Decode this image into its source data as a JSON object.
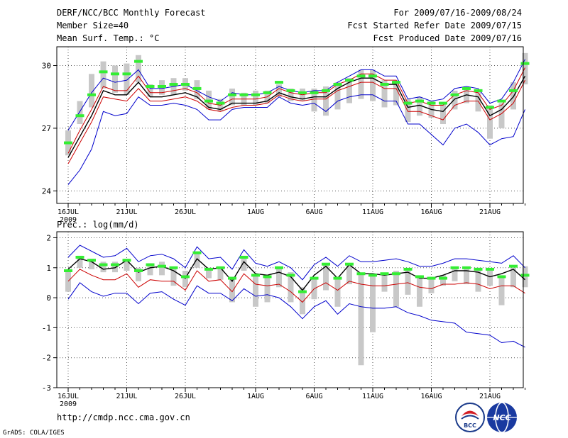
{
  "header": {
    "title": "DERF/NCC/BCC Monthly Forecast",
    "member_size": "Member Size=40",
    "variable": "Mean Surf. Temp.: °C",
    "period": "For 2009/07/16-2009/08/24",
    "started": "Fcst Started Refer Date 2009/07/15",
    "produced": "Fcst Produced Date 2009/07/16"
  },
  "footer": {
    "url": "http://cmdp.ncc.cma.gov.cn",
    "credit": "GrADS: COLA/IGES"
  },
  "logos": {
    "left": "BCC",
    "right": "NCC"
  },
  "colors": {
    "envelope": "#0000cc",
    "spread": "#cc0000",
    "mean": "#000000",
    "bar": "#c8c8c8",
    "marker": "#33ee33"
  },
  "chart_data": [
    {
      "type": "line",
      "title": "Mean Surf. Temp.: °C",
      "xlabel": "",
      "ylabel": "°C",
      "ylim": [
        23.4,
        30.9
      ],
      "yticks": [
        24,
        27,
        30
      ],
      "xticks": [
        {
          "day": 1,
          "label": "16JUL",
          "sub": "2009"
        },
        {
          "day": 6,
          "label": "21JUL"
        },
        {
          "day": 11,
          "label": "26JUL"
        },
        {
          "day": 17,
          "label": "1AUG"
        },
        {
          "day": 22,
          "label": "6AUG"
        },
        {
          "day": 27,
          "label": "11AUG"
        },
        {
          "day": 32,
          "label": "16AUG"
        },
        {
          "day": 37,
          "label": "21AUG"
        }
      ],
      "x": [
        1,
        2,
        3,
        4,
        5,
        6,
        7,
        8,
        9,
        10,
        11,
        12,
        13,
        14,
        15,
        16,
        17,
        18,
        19,
        20,
        21,
        22,
        23,
        24,
        25,
        26,
        27,
        28,
        29,
        30,
        31,
        32,
        33,
        34,
        35,
        36,
        37,
        38,
        39,
        40
      ],
      "series": [
        {
          "name": "max",
          "values": [
            26.9,
            27.8,
            28.7,
            29.4,
            29.2,
            29.3,
            29.8,
            28.9,
            28.9,
            29.0,
            29.1,
            28.8,
            28.5,
            28.3,
            28.7,
            28.6,
            28.6,
            28.7,
            29.0,
            28.8,
            28.7,
            28.8,
            28.8,
            29.2,
            29.5,
            29.8,
            29.8,
            29.5,
            29.5,
            28.4,
            28.5,
            28.3,
            28.4,
            28.9,
            29.0,
            28.9,
            28.2,
            28.4,
            29.2,
            30.3
          ]
        },
        {
          "name": "upper",
          "values": [
            25.8,
            26.9,
            27.9,
            29.0,
            28.8,
            28.8,
            29.5,
            28.7,
            28.7,
            28.8,
            28.9,
            28.7,
            28.2,
            28.1,
            28.4,
            28.4,
            28.4,
            28.5,
            28.9,
            28.7,
            28.6,
            28.7,
            28.7,
            29.1,
            29.3,
            29.6,
            29.6,
            29.3,
            29.3,
            28.2,
            28.3,
            28.1,
            28.1,
            28.6,
            28.8,
            28.7,
            27.9,
            28.1,
            28.8,
            29.9
          ]
        },
        {
          "name": "mean",
          "values": [
            25.6,
            26.6,
            27.6,
            28.8,
            28.6,
            28.6,
            29.2,
            28.5,
            28.5,
            28.6,
            28.7,
            28.5,
            28.0,
            27.9,
            28.2,
            28.2,
            28.2,
            28.3,
            28.7,
            28.5,
            28.4,
            28.5,
            28.5,
            28.9,
            29.2,
            29.4,
            29.4,
            29.1,
            29.1,
            28.0,
            28.1,
            27.9,
            27.8,
            28.4,
            28.6,
            28.5,
            27.6,
            27.9,
            28.5,
            29.5
          ]
        },
        {
          "name": "lower",
          "values": [
            25.3,
            26.3,
            27.3,
            28.5,
            28.4,
            28.3,
            28.9,
            28.3,
            28.3,
            28.4,
            28.5,
            28.3,
            27.9,
            27.8,
            28.0,
            28.1,
            28.1,
            28.2,
            28.6,
            28.4,
            28.3,
            28.4,
            28.4,
            28.8,
            29.0,
            29.2,
            29.2,
            28.9,
            28.9,
            27.8,
            27.8,
            27.6,
            27.4,
            28.1,
            28.3,
            28.3,
            27.4,
            27.7,
            28.2,
            29.3
          ]
        },
        {
          "name": "min",
          "values": [
            24.3,
            25.0,
            26.0,
            27.8,
            27.6,
            27.7,
            28.5,
            28.1,
            28.1,
            28.2,
            28.1,
            27.9,
            27.4,
            27.4,
            27.9,
            28.0,
            28.0,
            28.0,
            28.5,
            28.2,
            28.1,
            28.2,
            27.8,
            28.3,
            28.5,
            28.6,
            28.6,
            28.3,
            28.3,
            27.2,
            27.2,
            26.7,
            26.2,
            27.0,
            27.2,
            26.8,
            26.2,
            26.5,
            26.6,
            27.9
          ]
        },
        {
          "name": "bars",
          "values": [
            [
              25.7,
              26.9
            ],
            [
              27.2,
              28.3
            ],
            [
              28.0,
              29.6
            ],
            [
              28.9,
              30.2
            ],
            [
              28.7,
              30.0
            ],
            [
              28.6,
              30.1
            ],
            [
              29.2,
              30.5
            ],
            [
              28.5,
              29.1
            ],
            [
              28.6,
              29.3
            ],
            [
              28.6,
              29.4
            ],
            [
              28.8,
              29.4
            ],
            [
              28.4,
              29.3
            ],
            [
              27.9,
              28.8
            ],
            [
              27.8,
              28.4
            ],
            [
              28.1,
              28.9
            ],
            [
              28.1,
              28.7
            ],
            [
              28.1,
              28.8
            ],
            [
              28.2,
              28.8
            ],
            [
              28.5,
              29.1
            ],
            [
              28.3,
              28.9
            ],
            [
              28.3,
              28.9
            ],
            [
              27.8,
              28.9
            ],
            [
              27.6,
              29.0
            ],
            [
              27.9,
              29.2
            ],
            [
              28.2,
              29.4
            ],
            [
              28.4,
              29.8
            ],
            [
              28.3,
              29.8
            ],
            [
              28.0,
              29.3
            ],
            [
              28.1,
              29.3
            ],
            [
              27.3,
              28.4
            ],
            [
              27.6,
              28.5
            ],
            [
              27.5,
              28.3
            ],
            [
              27.2,
              28.2
            ],
            [
              27.9,
              28.8
            ],
            [
              28.2,
              28.9
            ],
            [
              27.8,
              28.8
            ],
            [
              26.5,
              28.1
            ],
            [
              27.0,
              28.2
            ],
            [
              27.9,
              29.2
            ],
            [
              29.1,
              30.6
            ]
          ]
        },
        {
          "name": "obs",
          "values": [
            26.3,
            27.6,
            28.6,
            29.7,
            29.6,
            29.6,
            30.2,
            29.0,
            29.0,
            29.1,
            29.1,
            28.9,
            28.3,
            28.2,
            28.6,
            28.6,
            28.6,
            28.7,
            29.2,
            28.8,
            28.7,
            28.7,
            28.8,
            29.1,
            29.3,
            29.5,
            29.5,
            29.1,
            29.2,
            28.2,
            28.3,
            28.2,
            28.2,
            28.6,
            28.9,
            28.8,
            28.0,
            28.3,
            28.8,
            30.1
          ]
        }
      ]
    },
    {
      "type": "line",
      "title": "Prec.: log(mm/d)",
      "xlabel": "",
      "ylabel": "log(mm/d)",
      "ylim": [
        -3,
        2.2
      ],
      "yticks": [
        -3,
        -2,
        -1,
        0,
        1,
        2
      ],
      "xticks": [
        {
          "day": 1,
          "label": "16JUL",
          "sub": "2009"
        },
        {
          "day": 6,
          "label": "21JUL"
        },
        {
          "day": 11,
          "label": "26JUL"
        },
        {
          "day": 17,
          "label": "1AUG"
        },
        {
          "day": 22,
          "label": "6AUG"
        },
        {
          "day": 27,
          "label": "11AUG"
        },
        {
          "day": 32,
          "label": "16AUG"
        },
        {
          "day": 37,
          "label": "21AUG"
        }
      ],
      "x": [
        1,
        2,
        3,
        4,
        5,
        6,
        7,
        8,
        9,
        10,
        11,
        12,
        13,
        14,
        15,
        16,
        17,
        18,
        19,
        20,
        21,
        22,
        23,
        24,
        25,
        26,
        27,
        28,
        29,
        30,
        31,
        32,
        33,
        34,
        35,
        36,
        37,
        38,
        39,
        40
      ],
      "series": [
        {
          "name": "max",
          "values": [
            1.35,
            1.75,
            1.55,
            1.35,
            1.4,
            1.65,
            1.2,
            1.4,
            1.45,
            1.3,
            1.0,
            1.7,
            1.3,
            1.35,
            0.95,
            1.6,
            1.15,
            1.05,
            1.2,
            1.0,
            0.6,
            1.1,
            1.35,
            1.05,
            1.4,
            1.2,
            1.2,
            1.25,
            1.3,
            1.2,
            1.05,
            1.05,
            1.15,
            1.3,
            1.3,
            1.25,
            1.2,
            1.15,
            1.4,
            1.0
          ]
        },
        {
          "name": "mean",
          "values": [
            0.95,
            1.3,
            1.2,
            0.95,
            1.0,
            1.25,
            0.85,
            1.0,
            1.05,
            0.9,
            0.65,
            1.3,
            0.95,
            1.0,
            0.55,
            1.2,
            0.8,
            0.75,
            0.85,
            0.7,
            0.25,
            0.75,
            1.05,
            0.65,
            1.1,
            0.8,
            0.8,
            0.75,
            0.8,
            0.85,
            0.65,
            0.65,
            0.75,
            0.9,
            0.9,
            0.85,
            0.7,
            0.8,
            0.95,
            0.6
          ]
        },
        {
          "name": "spread",
          "values": [
            0.55,
            0.95,
            0.75,
            0.6,
            0.6,
            0.8,
            0.35,
            0.6,
            0.55,
            0.55,
            0.25,
            0.9,
            0.55,
            0.6,
            0.2,
            0.8,
            0.45,
            0.4,
            0.45,
            0.2,
            -0.15,
            0.3,
            0.5,
            0.25,
            0.55,
            0.45,
            0.4,
            0.4,
            0.45,
            0.5,
            0.35,
            0.3,
            0.45,
            0.45,
            0.5,
            0.45,
            0.3,
            0.4,
            0.4,
            0.15
          ]
        },
        {
          "name": "min",
          "values": [
            -0.05,
            0.5,
            0.2,
            0.05,
            0.15,
            0.15,
            -0.2,
            0.15,
            0.2,
            -0.05,
            -0.25,
            0.4,
            0.15,
            0.15,
            -0.1,
            0.3,
            0.05,
            0.1,
            0.0,
            -0.3,
            -0.7,
            -0.3,
            -0.1,
            -0.55,
            -0.2,
            -0.3,
            -0.35,
            -0.35,
            -0.3,
            -0.5,
            -0.6,
            -0.75,
            -0.8,
            -0.85,
            -1.15,
            -1.2,
            -1.25,
            -1.5,
            -1.45,
            -1.65
          ]
        },
        {
          "name": "bars",
          "values": [
            [
              0.2,
              0.9
            ],
            [
              1.0,
              1.4
            ],
            [
              0.95,
              1.3
            ],
            [
              0.85,
              1.2
            ],
            [
              0.85,
              1.2
            ],
            [
              0.9,
              1.3
            ],
            [
              0.55,
              1.0
            ],
            [
              0.75,
              1.15
            ],
            [
              0.75,
              1.2
            ],
            [
              0.4,
              1.0
            ],
            [
              0.35,
              0.9
            ],
            [
              1.0,
              1.5
            ],
            [
              0.65,
              1.0
            ],
            [
              0.6,
              1.0
            ],
            [
              -0.15,
              0.7
            ],
            [
              0.9,
              1.4
            ],
            [
              -0.3,
              0.75
            ],
            [
              -0.15,
              0.7
            ],
            [
              0.35,
              1.0
            ],
            [
              -0.15,
              0.85
            ],
            [
              -0.55,
              0.35
            ],
            [
              -0.05,
              0.65
            ],
            [
              0.25,
              1.1
            ],
            [
              -0.3,
              0.7
            ],
            [
              0.45,
              1.15
            ],
            [
              -2.25,
              0.8
            ],
            [
              -1.15,
              0.75
            ],
            [
              0.2,
              0.75
            ],
            [
              -0.3,
              0.9
            ],
            [
              0.1,
              0.9
            ],
            [
              -0.3,
              0.75
            ],
            [
              0.15,
              0.7
            ],
            [
              0.4,
              0.75
            ],
            [
              0.55,
              1.0
            ],
            [
              0.45,
              1.0
            ],
            [
              0.2,
              1.0
            ],
            [
              0.4,
              0.95
            ],
            [
              -0.25,
              0.75
            ],
            [
              0.35,
              1.0
            ],
            [
              0.35,
              1.05
            ]
          ]
        },
        {
          "name": "obs",
          "values": [
            0.9,
            1.35,
            1.25,
            1.1,
            1.1,
            1.25,
            0.9,
            1.1,
            1.05,
            1.0,
            0.7,
            1.5,
            0.95,
            1.0,
            0.65,
            1.35,
            0.75,
            0.7,
            1.0,
            0.75,
            0.2,
            0.65,
            1.12,
            0.65,
            1.12,
            0.8,
            0.75,
            0.8,
            0.8,
            0.95,
            0.7,
            0.65,
            0.65,
            1.0,
            1.0,
            0.95,
            0.95,
            0.7,
            1.05,
            0.75
          ]
        }
      ]
    }
  ]
}
